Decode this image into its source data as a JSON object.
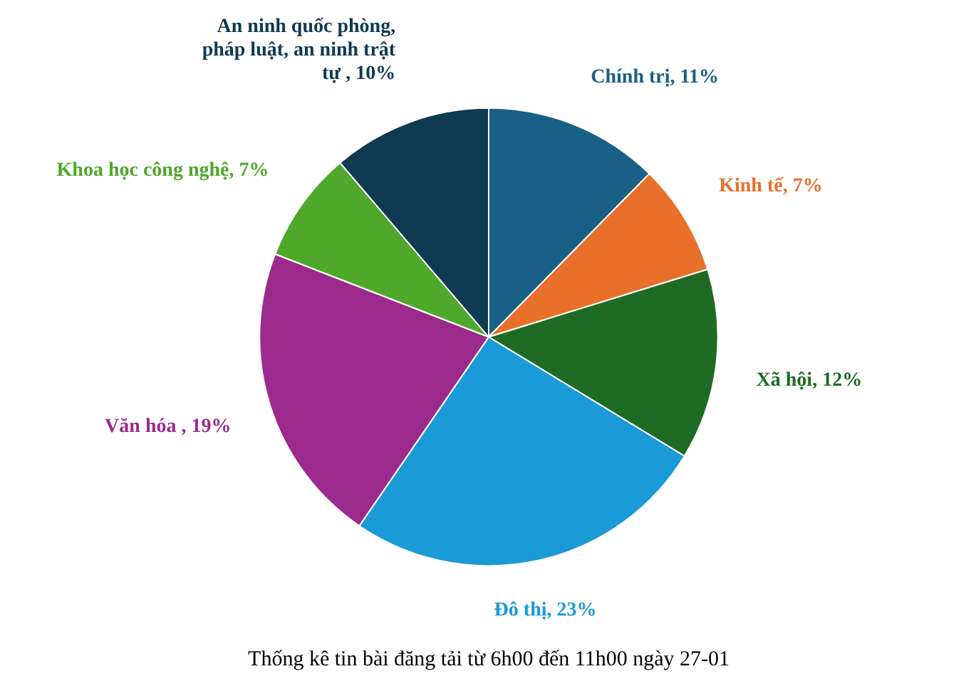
{
  "chart_data": {
    "type": "pie",
    "title": "Thống kê tin bài đăng tải từ 6h00 đến 11h00 ngày 27-01",
    "categories": [
      "Chính trị",
      "Kinh tế",
      "Xã hội",
      "Đô thị",
      "Văn hóa",
      "Khoa học công nghệ",
      "An ninh quốc phòng, pháp luật, an ninh trật tự"
    ],
    "values": [
      11,
      7,
      12,
      23,
      19,
      7,
      10
    ],
    "value_labels": [
      ", 11%",
      ", 7%",
      ", 12%",
      ", 23%",
      " , 19%",
      ", 7%",
      " , 10%"
    ],
    "colors": [
      "#1a5f86",
      "#e8702a",
      "#1e6b24",
      "#1a9ad6",
      "#9c2a8c",
      "#4ea82a",
      "#0e3a52"
    ]
  }
}
